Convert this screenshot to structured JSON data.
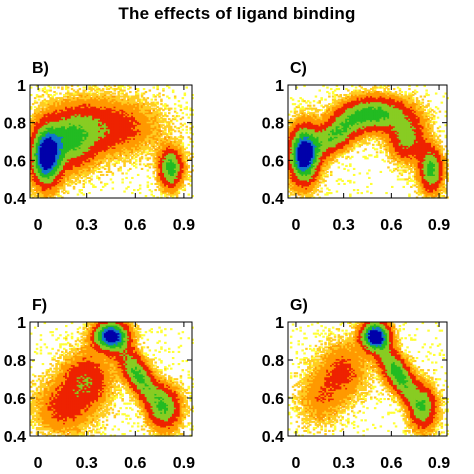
{
  "figure": {
    "title": "The effects of ligand binding"
  },
  "chart_data": [
    {
      "type": "heatmap",
      "panel_label": "B)",
      "xlim": [
        -0.05,
        0.95
      ],
      "ylim": [
        0.4,
        1.0
      ],
      "x_ticks": [
        "0",
        "0.3",
        "0.6",
        "0.9"
      ],
      "y_ticks": [
        "0.4",
        "0.6",
        "0.8",
        "1"
      ],
      "density_peaks": [
        {
          "x": 0.05,
          "y": 0.62,
          "level": "high"
        },
        {
          "x": 0.82,
          "y": 0.56,
          "level": "medium"
        }
      ]
    },
    {
      "type": "heatmap",
      "panel_label": "C)",
      "xlim": [
        -0.05,
        0.95
      ],
      "ylim": [
        0.4,
        1.0
      ],
      "x_ticks": [
        "0",
        "0.3",
        "0.6",
        "0.9"
      ],
      "y_ticks": [
        "0.4",
        "0.6",
        "0.8",
        "1"
      ],
      "density_peaks": [
        {
          "x": 0.05,
          "y": 0.63,
          "level": "high"
        },
        {
          "x": 0.5,
          "y": 0.85,
          "level": "medium"
        },
        {
          "x": 0.85,
          "y": 0.55,
          "level": "medium"
        }
      ]
    },
    {
      "type": "heatmap",
      "panel_label": "F)",
      "xlim": [
        -0.05,
        0.95
      ],
      "ylim": [
        0.4,
        1.0
      ],
      "x_ticks": [
        "0",
        "0.3",
        "0.6",
        "0.9"
      ],
      "y_ticks": [
        "0.4",
        "0.6",
        "0.8",
        "1"
      ],
      "density_peaks": [
        {
          "x": 0.45,
          "y": 0.93,
          "level": "high"
        },
        {
          "x": 0.75,
          "y": 0.55,
          "level": "medium"
        }
      ]
    },
    {
      "type": "heatmap",
      "panel_label": "G)",
      "xlim": [
        -0.05,
        0.95
      ],
      "ylim": [
        0.4,
        1.0
      ],
      "x_ticks": [
        "0",
        "0.3",
        "0.6",
        "0.9"
      ],
      "y_ticks": [
        "0.4",
        "0.6",
        "0.8",
        "1"
      ],
      "density_peaks": [
        {
          "x": 0.5,
          "y": 0.93,
          "level": "high"
        },
        {
          "x": 0.78,
          "y": 0.55,
          "level": "medium"
        }
      ]
    }
  ],
  "colors": {
    "low": "#ffff33",
    "mid_low": "#ff9900",
    "mid": "#ee2200",
    "mid_high": "#22bb22",
    "high": "#0000aa"
  }
}
